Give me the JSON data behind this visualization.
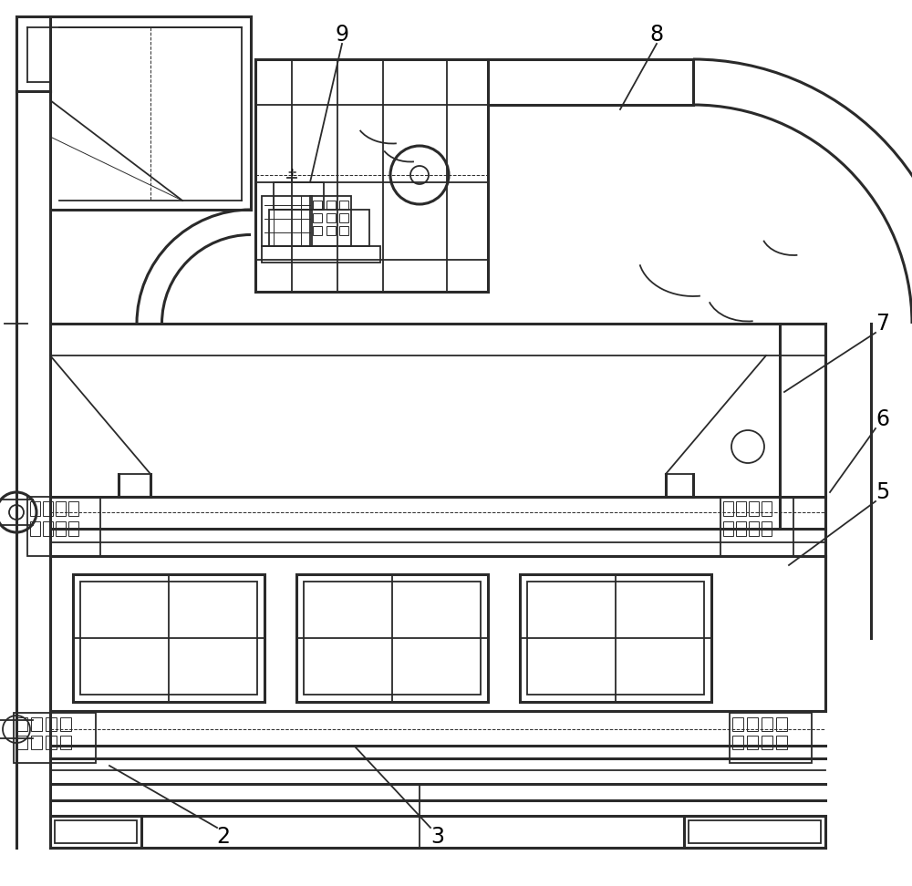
{
  "bg_color": "#ffffff",
  "lc": "#2a2a2a",
  "lw": 1.3,
  "tlw": 0.7,
  "thw": 2.2,
  "label_fontsize": 17,
  "figsize": [
    10.0,
    9.72
  ],
  "dpi": 100
}
